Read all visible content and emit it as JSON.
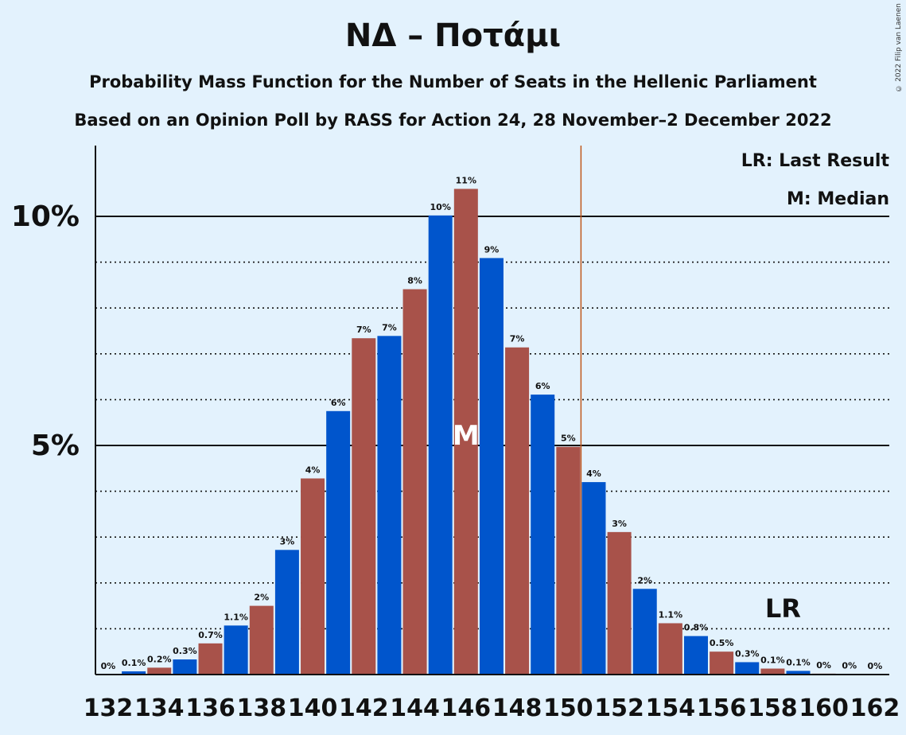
{
  "title": "ΝΔ – Ποτάμι",
  "subtitle": "Probability Mass Function for the Number of Seats in the Hellenic Parliament",
  "subtitle2": "Based on an Opinion Poll by RASS for Action 24, 28 November–2 December 2022",
  "copyright": "© 2022 Filip van Laenen",
  "legend": {
    "lr": "LR: Last Result",
    "median": "M: Median"
  },
  "colors": {
    "blue": "#0055cc",
    "red": "#a8524a",
    "background": "#e3f2fd",
    "last_result_line": "#c0571a"
  },
  "chart_data": {
    "type": "bar",
    "xlabel": "",
    "ylabel": "",
    "ylim": [
      0,
      11.6
    ],
    "y_ticks": [
      {
        "value": 5,
        "label": "5%"
      },
      {
        "value": 10,
        "label": "10%"
      }
    ],
    "minor_gridlines": [
      1,
      2,
      3,
      4,
      6,
      7,
      8,
      9
    ],
    "x_tick_labels": [
      "132",
      "134",
      "136",
      "138",
      "140",
      "142",
      "144",
      "146",
      "148",
      "150",
      "152",
      "154",
      "156",
      "158",
      "160",
      "162"
    ],
    "categories": [
      132,
      133,
      134,
      135,
      136,
      137,
      138,
      139,
      140,
      141,
      142,
      143,
      144,
      145,
      146,
      147,
      148,
      149,
      150,
      151,
      152,
      153,
      154,
      155,
      156,
      157,
      158,
      159,
      160,
      161,
      162
    ],
    "values": [
      0,
      0.07,
      0.15,
      0.33,
      0.68,
      1.07,
      1.5,
      2.72,
      4.28,
      5.75,
      7.34,
      7.39,
      8.41,
      10.02,
      10.6,
      9.09,
      7.14,
      6.11,
      4.97,
      4.2,
      3.11,
      1.87,
      1.12,
      0.84,
      0.5,
      0.27,
      0.13,
      0.08,
      0.02,
      0.01,
      0
    ],
    "labels": [
      "0%",
      "0.1%",
      "0.2%",
      "0.3%",
      "0.7%",
      "1.1%",
      "2%",
      "3%",
      "4%",
      "6%",
      "7%",
      "7%",
      "8%",
      "10%",
      "11%",
      "9%",
      "7%",
      "6%",
      "5%",
      "4%",
      "3%",
      "2%",
      "1.1%",
      "0.8%",
      "0.5%",
      "0.3%",
      "0.1%",
      "0.1%",
      "0%",
      "0%",
      "0%"
    ],
    "median": 146,
    "median_marker": "M",
    "majority_line_after": 150,
    "last_result": 158,
    "last_result_marker": "LR",
    "legend_position": "top-right",
    "grid": true
  }
}
